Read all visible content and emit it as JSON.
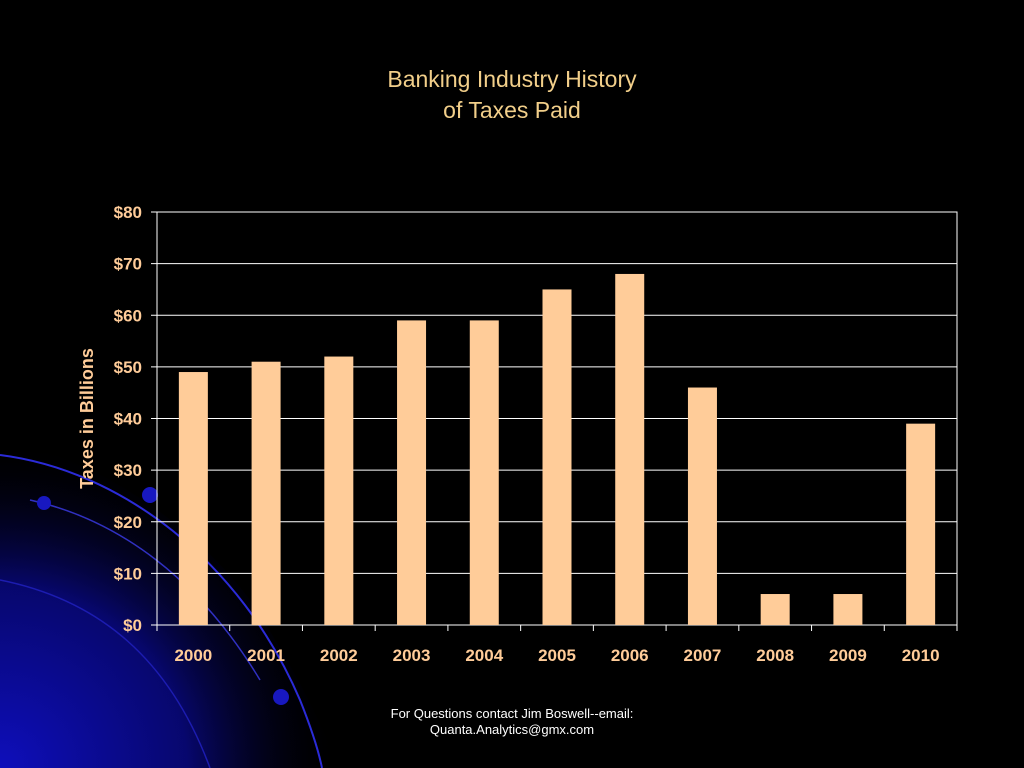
{
  "title_lines": [
    "Banking Industry History",
    "of Taxes Paid"
  ],
  "footer_lines": [
    "For Questions contact Jim Boswell--email:",
    "Quanta.Analytics@gmx.com"
  ],
  "colors": {
    "background": "#000000",
    "bar": "#ffcc99",
    "title": "#f2cf8a",
    "axis_text": "#ffcc99",
    "decor": "#0a0a8c"
  },
  "chart_data": {
    "type": "bar",
    "title": "Banking Industry History of Taxes Paid",
    "xlabel": "",
    "ylabel": "Taxes in Billions",
    "categories": [
      "2000",
      "2001",
      "2002",
      "2003",
      "2004",
      "2005",
      "2006",
      "2007",
      "2008",
      "2009",
      "2010"
    ],
    "values": [
      49,
      51,
      52,
      59,
      59,
      65,
      68,
      46,
      6,
      6,
      39
    ],
    "ylim": [
      0,
      80
    ],
    "yticks": [
      0,
      10,
      20,
      30,
      40,
      50,
      60,
      70,
      80
    ],
    "ytick_labels": [
      "$0",
      "$10",
      "$20",
      "$30",
      "$40",
      "$50",
      "$60",
      "$70",
      "$80"
    ],
    "grid": true,
    "legend": "none"
  }
}
